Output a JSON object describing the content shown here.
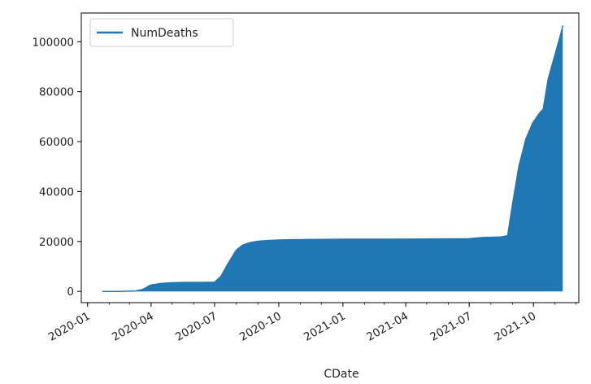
{
  "chart_data": {
    "type": "area",
    "xlabel": "CDate",
    "ylabel": "",
    "x_ticks": [
      "2020-01",
      "2020-04",
      "2020-07",
      "2020-10",
      "2021-01",
      "2021-04",
      "2021-07",
      "2021-10"
    ],
    "y_ticks": [
      "0",
      "20000",
      "40000",
      "60000",
      "80000",
      "100000"
    ],
    "xlim": [
      "2019-12-23",
      "2021-12-05"
    ],
    "ylim": [
      -4500,
      111500
    ],
    "legend": {
      "position": "top-left",
      "entries": [
        "NumDeaths"
      ]
    },
    "grid": false,
    "colors": {
      "series": "#1f77b4"
    },
    "series": [
      {
        "name": "NumDeaths",
        "x": [
          "2020-01-22",
          "2020-02-15",
          "2020-03-10",
          "2020-03-20",
          "2020-03-31",
          "2020-04-15",
          "2020-05-01",
          "2020-05-20",
          "2020-06-10",
          "2020-07-01",
          "2020-07-10",
          "2020-07-20",
          "2020-08-01",
          "2020-08-10",
          "2020-08-20",
          "2020-09-01",
          "2020-09-15",
          "2020-10-01",
          "2020-10-20",
          "2020-11-15",
          "2021-01-01",
          "2021-03-01",
          "2021-05-01",
          "2021-07-01",
          "2021-07-20",
          "2021-08-01",
          "2021-08-15",
          "2021-08-25",
          "2021-09-01",
          "2021-09-10",
          "2021-09-20",
          "2021-09-30",
          "2021-10-10",
          "2021-10-15",
          "2021-10-22",
          "2021-11-01",
          "2021-11-10",
          "2021-11-12"
        ],
        "values": [
          0,
          0,
          200,
          800,
          2500,
          3200,
          3500,
          3600,
          3600,
          3700,
          6000,
          11000,
          16500,
          18500,
          19500,
          20100,
          20400,
          20600,
          20700,
          20800,
          20900,
          20900,
          21000,
          21100,
          21600,
          21700,
          21800,
          22300,
          35000,
          50000,
          61000,
          67500,
          71500,
          73000,
          85000,
          95000,
          104000,
          106500
        ]
      }
    ]
  }
}
